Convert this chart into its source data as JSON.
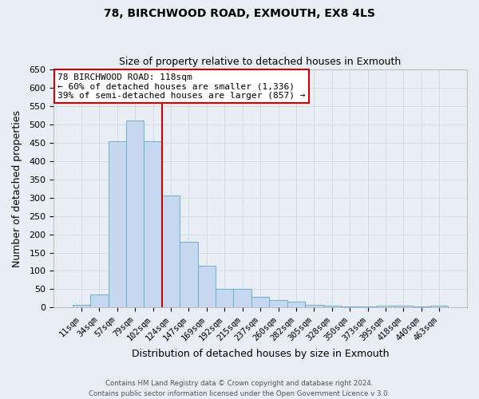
{
  "title1": "78, BIRCHWOOD ROAD, EXMOUTH, EX8 4LS",
  "title2": "Size of property relative to detached houses in Exmouth",
  "xlabel": "Distribution of detached houses by size in Exmouth",
  "ylabel": "Number of detached properties",
  "footer1": "Contains HM Land Registry data © Crown copyright and database right 2024.",
  "footer2": "Contains public sector information licensed under the Open Government Licence v 3.0.",
  "bar_labels": [
    "11sqm",
    "34sqm",
    "57sqm",
    "79sqm",
    "102sqm",
    "124sqm",
    "147sqm",
    "169sqm",
    "192sqm",
    "215sqm",
    "237sqm",
    "260sqm",
    "282sqm",
    "305sqm",
    "328sqm",
    "350sqm",
    "373sqm",
    "395sqm",
    "418sqm",
    "440sqm",
    "463sqm"
  ],
  "bar_values": [
    7,
    35,
    455,
    510,
    455,
    305,
    180,
    115,
    50,
    50,
    30,
    20,
    15,
    8,
    5,
    3,
    3,
    6,
    5,
    4,
    5
  ],
  "bar_color": "#c5d8f0",
  "bar_edge_color": "#6baed6",
  "grid_color": "#d0dce8",
  "annotation_text": "78 BIRCHWOOD ROAD: 118sqm\n← 60% of detached houses are smaller (1,336)\n39% of semi-detached houses are larger (857) →",
  "annotation_box_color": "white",
  "annotation_box_edge_color": "#cc0000",
  "vline_color": "#cc0000",
  "ylim": [
    0,
    650
  ],
  "yticks": [
    0,
    50,
    100,
    150,
    200,
    250,
    300,
    350,
    400,
    450,
    500,
    550,
    600,
    650
  ],
  "background_color": "#e8eef4"
}
